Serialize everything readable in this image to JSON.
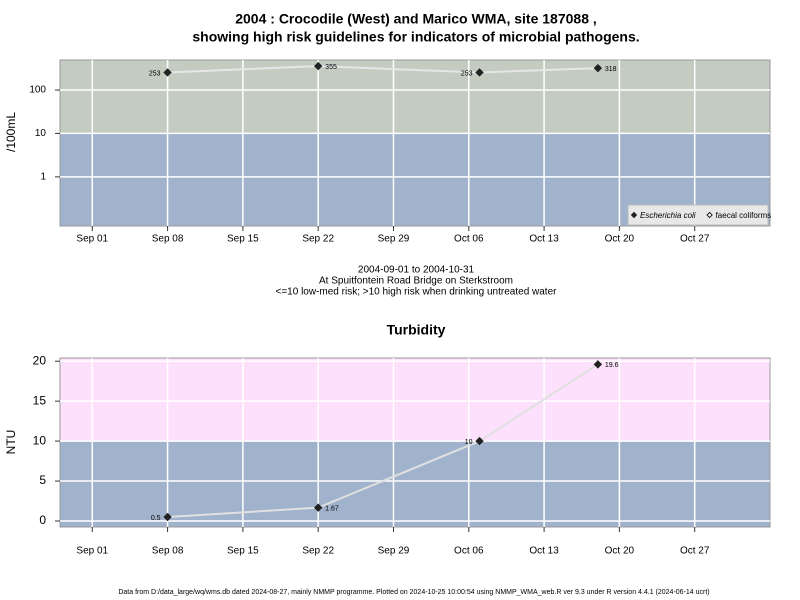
{
  "chart_data": [
    {
      "type": "line",
      "title": [
        "2004 : Crocodile (West) and Marico WMA, site 187088 ,",
        "showing high risk guidelines for indicators of microbial pathogens."
      ],
      "y_label": "/100mL",
      "x": [
        "2004-09-08",
        "2004-09-22",
        "2004-10-07",
        "2004-10-18"
      ],
      "series": [
        {
          "name": "Escherichia coli",
          "color": "#222222",
          "marker": "filled",
          "values": [
            253,
            355,
            253,
            318
          ]
        },
        {
          "name": "faecal coliforms",
          "color": "#222222",
          "marker": "open",
          "values": [
            null,
            null,
            null,
            null
          ]
        }
      ],
      "log_y": true,
      "ylim": [
        0.074,
        490
      ],
      "yticks": [
        1,
        10,
        100
      ],
      "xlim": [
        "2004-08-29",
        "2004-11-03"
      ],
      "xticks": [
        {
          "value": "2004-09-01",
          "label": "Sep 01"
        },
        {
          "value": "2004-09-08",
          "label": "Sep 08"
        },
        {
          "value": "2004-09-15",
          "label": "Sep 15"
        },
        {
          "value": "2004-09-22",
          "label": "Sep 22"
        },
        {
          "value": "2004-09-29",
          "label": "Sep 29"
        },
        {
          "value": "2004-10-06",
          "label": "Oct 06"
        },
        {
          "value": "2004-10-13",
          "label": "Oct 13"
        },
        {
          "value": "2004-10-20",
          "label": "Oct 20"
        },
        {
          "value": "2004-10-27",
          "label": "Oct 27"
        }
      ],
      "threshold": 10,
      "band_colors": [
        "#a1b3cc",
        "#c4ccc2"
      ],
      "line_color": "#e6e6e6",
      "grid": true,
      "legend_position": "bottom-right",
      "notes": [
        "2004-09-01 to 2004-10-31",
        "At Spuitfontein Road Bridge on Sterkstroom",
        "<=10 low-med risk; >10 high risk when drinking untreated water"
      ]
    },
    {
      "type": "line",
      "title": [
        "Turbidity"
      ],
      "y_label": "NTU",
      "x": [
        "2004-09-08",
        "2004-09-22",
        "2004-10-07",
        "2004-10-18"
      ],
      "series": [
        {
          "name": "Turbidity",
          "color": "#222222",
          "marker": "filled",
          "values": [
            0.5,
            1.67,
            10,
            19.6
          ]
        }
      ],
      "log_y": false,
      "ylim": [
        -0.75,
        20.4
      ],
      "yticks": [
        0,
        5,
        10,
        15,
        20
      ],
      "xlim": [
        "2004-08-29",
        "2004-11-03"
      ],
      "xticks": [
        {
          "value": "2004-09-01",
          "label": "Sep 01"
        },
        {
          "value": "2004-09-08",
          "label": "Sep 08"
        },
        {
          "value": "2004-09-15",
          "label": "Sep 15"
        },
        {
          "value": "2004-09-22",
          "label": "Sep 22"
        },
        {
          "value": "2004-09-29",
          "label": "Sep 29"
        },
        {
          "value": "2004-10-06",
          "label": "Oct 06"
        },
        {
          "value": "2004-10-13",
          "label": "Oct 13"
        },
        {
          "value": "2004-10-20",
          "label": "Oct 20"
        },
        {
          "value": "2004-10-27",
          "label": "Oct 27"
        }
      ],
      "threshold": 10,
      "band_colors": [
        "#a1b3cc",
        "#fde0fc"
      ],
      "line_color": "#e0e0e0",
      "grid": true
    }
  ],
  "footer": "Data from D:/data_large/wq/wms.db dated 2024-08-27, mainly NMMP programme. Plotted on 2024-10-25 10:00:54 using NMMP_WMA_web.R ver 9.3 under R version 4.4.1 (2024-06-14 ucrt)"
}
